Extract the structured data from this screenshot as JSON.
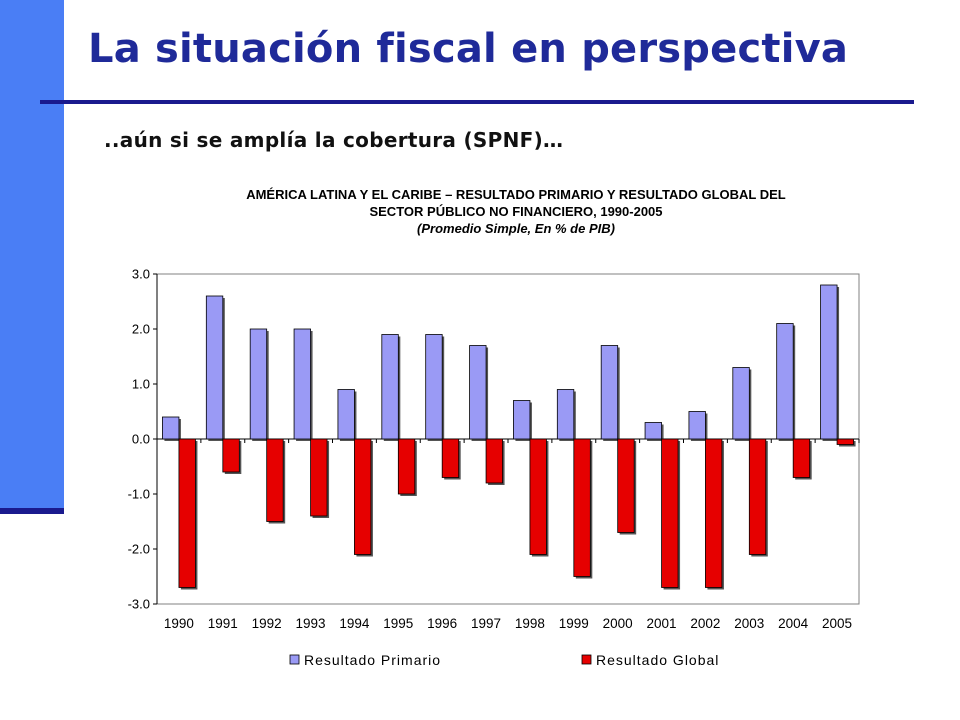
{
  "slide": {
    "title": "La situación fiscal en perspectiva",
    "subtitle": "..aún si se amplía la cobertura (SPNF)…"
  },
  "colors": {
    "accent_bar": "#4a7ef5",
    "title": "#1f2a99",
    "primario": "#9a9af5",
    "global": "#e60000"
  },
  "chart_data": {
    "type": "bar",
    "title_line1": "AMÉRICA LATINA Y EL CARIBE – RESULTADO PRIMARIO Y RESULTADO GLOBAL DEL",
    "title_line2": "SECTOR PÚBLICO NO FINANCIERO, 1990-2005",
    "note": "(Promedio Simple, En %  de PIB)",
    "categories": [
      "1990",
      "1991",
      "1992",
      "1993",
      "1994",
      "1995",
      "1996",
      "1997",
      "1998",
      "1999",
      "2000",
      "2001",
      "2002",
      "2003",
      "2004",
      "2005"
    ],
    "series": [
      {
        "name": "Resultado Primario",
        "values": [
          0.4,
          2.6,
          2.0,
          2.0,
          0.9,
          1.9,
          1.9,
          1.7,
          0.7,
          0.9,
          1.7,
          0.3,
          0.5,
          1.3,
          2.1,
          2.8
        ]
      },
      {
        "name": "Resultado Global",
        "values": [
          -2.7,
          -0.6,
          -1.5,
          -1.4,
          -2.1,
          -1.0,
          -0.7,
          -0.8,
          -2.1,
          -2.5,
          -1.7,
          -2.7,
          -2.7,
          -2.1,
          -0.7,
          -0.1
        ]
      }
    ],
    "ylim": [
      -3.0,
      3.0
    ],
    "yticks": [
      "3.0",
      "2.0",
      "1.0",
      "0.0",
      "-1.0",
      "-2.0",
      "-3.0"
    ],
    "legend_position": "bottom",
    "grid": false
  }
}
